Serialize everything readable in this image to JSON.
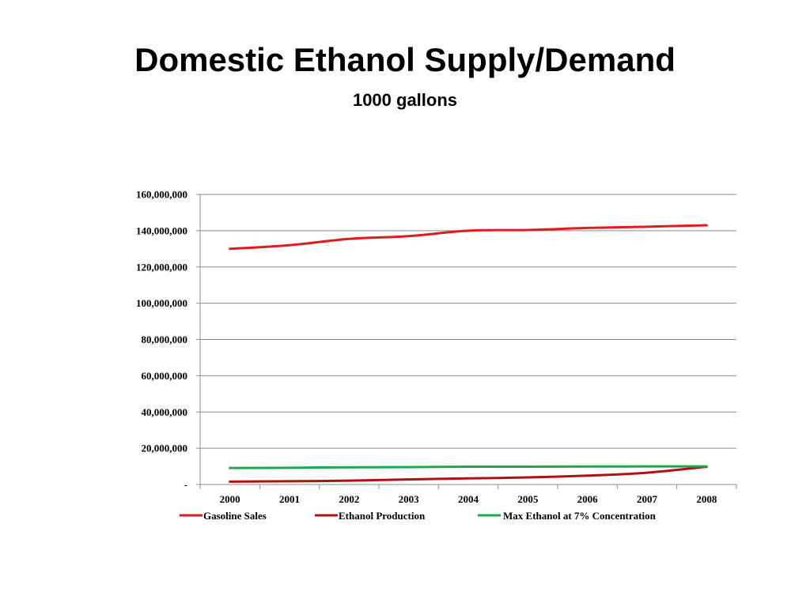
{
  "slide": {
    "title": "Domestic Ethanol Supply/Demand",
    "subtitle": "1000 gallons"
  },
  "chart_data": {
    "type": "line",
    "title": "",
    "xlabel": "",
    "ylabel": "",
    "x": [
      "2000",
      "2001",
      "2002",
      "2003",
      "2004",
      "2005",
      "2006",
      "2007",
      "2008"
    ],
    "ylim": [
      0,
      160000000
    ],
    "y_ticks": [
      {
        "value": 0,
        "label": "-"
      },
      {
        "value": 20000000,
        "label": "20,000,000"
      },
      {
        "value": 40000000,
        "label": "40,000,000"
      },
      {
        "value": 60000000,
        "label": "60,000,000"
      },
      {
        "value": 80000000,
        "label": "80,000,000"
      },
      {
        "value": 100000000,
        "label": "100,000,000"
      },
      {
        "value": 120000000,
        "label": "120,000,000"
      },
      {
        "value": 140000000,
        "label": "140,000,000"
      },
      {
        "value": 160000000,
        "label": "160,000,000"
      }
    ],
    "grid": true,
    "legend_position": "bottom",
    "series": [
      {
        "name": "Gasoline Sales",
        "color": "#e31a1c",
        "values": [
          130000000,
          132000000,
          135500000,
          137000000,
          140000000,
          140400000,
          141500000,
          142200000,
          143000000
        ]
      },
      {
        "name": "Ethanol Production",
        "color": "#b01010",
        "values": [
          1600000,
          1800000,
          2100000,
          2800000,
          3400000,
          3900000,
          4900000,
          6500000,
          9800000
        ]
      },
      {
        "name": "Max Ethanol at 7% Concentration",
        "color": "#1aaa4a",
        "values": [
          9100000,
          9200000,
          9500000,
          9600000,
          9800000,
          9800000,
          9900000,
          9950000,
          10000000
        ]
      }
    ]
  }
}
